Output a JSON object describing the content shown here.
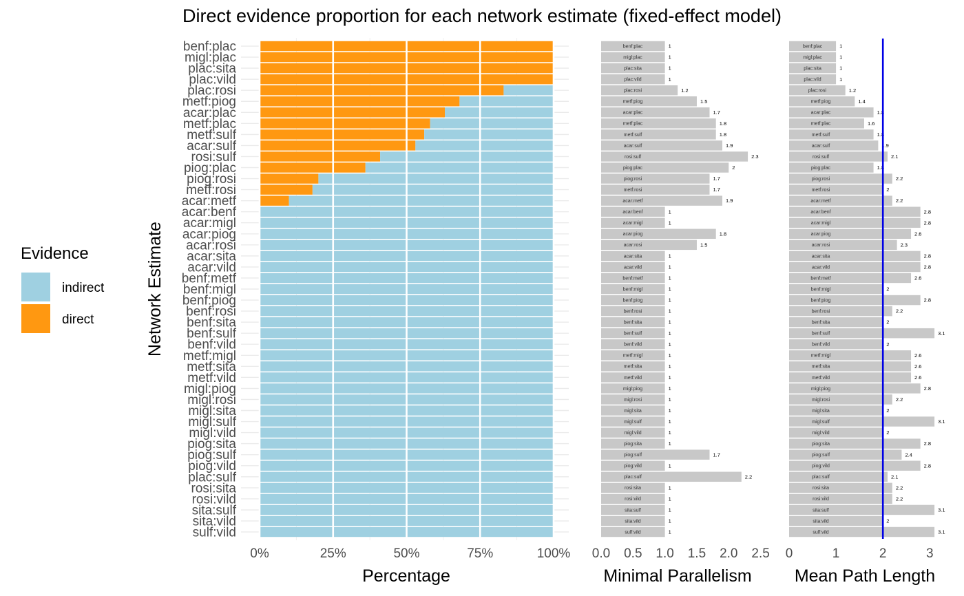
{
  "title": "Direct evidence proportion for each network estimate (fixed-effect model)",
  "y_label": "Network Estimate",
  "legend": {
    "title": "Evidence",
    "items": [
      {
        "label": "indirect",
        "color": "#9fd0e1"
      },
      {
        "label": "direct",
        "color": "#ff9811"
      }
    ]
  },
  "colors": {
    "indirect": "#9fd0e1",
    "direct": "#ff9811",
    "gray_bar": "#c8c8c8",
    "ref_line": "#0000e6",
    "grid": "#ebebeb"
  },
  "chart_data": [
    {
      "type": "bar",
      "orientation": "horizontal",
      "stacked": true,
      "xlabel": "Percentage",
      "ylabel": "Network Estimate",
      "xlim": [
        0,
        100
      ],
      "x_ticks": [
        "0%",
        "25%",
        "50%",
        "75%",
        "100%"
      ],
      "x_tick_values": [
        0,
        25,
        50,
        75,
        100
      ],
      "categories": [
        "benf:plac",
        "migl:plac",
        "plac:sita",
        "plac:vild",
        "plac:rosi",
        "metf:piog",
        "acar:plac",
        "metf:plac",
        "metf:sulf",
        "acar:sulf",
        "rosi:sulf",
        "piog:plac",
        "piog:rosi",
        "metf:rosi",
        "acar:metf",
        "acar:benf",
        "acar:migl",
        "acar:piog",
        "acar:rosi",
        "acar:sita",
        "acar:vild",
        "benf:metf",
        "benf:migl",
        "benf:piog",
        "benf:rosi",
        "benf:sita",
        "benf:sulf",
        "benf:vild",
        "metf:migl",
        "metf:sita",
        "metf:vild",
        "migl:piog",
        "migl:rosi",
        "migl:sita",
        "migl:sulf",
        "migl:vild",
        "piog:sita",
        "piog:sulf",
        "piog:vild",
        "plac:sulf",
        "rosi:sita",
        "rosi:vild",
        "sita:sulf",
        "sita:vild",
        "sulf:vild"
      ],
      "series": [
        {
          "name": "direct",
          "values": [
            100,
            100,
            100,
            100,
            83,
            68,
            63,
            58,
            56,
            53,
            41,
            36,
            20,
            18,
            10,
            0,
            0,
            0,
            0,
            0,
            0,
            0,
            0,
            0,
            0,
            0,
            0,
            0,
            0,
            0,
            0,
            0,
            0,
            0,
            0,
            0,
            0,
            0,
            0,
            0,
            0,
            0,
            0,
            0,
            0
          ]
        },
        {
          "name": "indirect",
          "values": [
            0,
            0,
            0,
            0,
            17,
            32,
            37,
            42,
            44,
            47,
            59,
            64,
            80,
            82,
            90,
            100,
            100,
            100,
            100,
            100,
            100,
            100,
            100,
            100,
            100,
            100,
            100,
            100,
            100,
            100,
            100,
            100,
            100,
            100,
            100,
            100,
            100,
            100,
            100,
            100,
            100,
            100,
            100,
            100,
            100
          ]
        }
      ],
      "legend_position": "left",
      "grid": true
    },
    {
      "type": "bar",
      "orientation": "horizontal",
      "xlabel": "Minimal Parallelism",
      "xlim": [
        0,
        2.55
      ],
      "x_ticks": [
        "0.0",
        "0.5",
        "1.0",
        "1.5",
        "2.0",
        "2.5"
      ],
      "x_tick_values": [
        0,
        0.5,
        1,
        1.5,
        2,
        2.5
      ],
      "categories": [
        "benf:plac",
        "migl:plac",
        "plac:sita",
        "plac:vild",
        "plac:rosi",
        "metf:piog",
        "acar:plac",
        "metf:plac",
        "metf:sulf",
        "acar:sulf",
        "rosi:sulf",
        "piog:plac",
        "piog:rosi",
        "metf:rosi",
        "acar:metf",
        "acar:benf",
        "acar:migl",
        "acar:piog",
        "acar:rosi",
        "acar:sita",
        "acar:vild",
        "benf:metf",
        "benf:migl",
        "benf:piog",
        "benf:rosi",
        "benf:sita",
        "benf:sulf",
        "benf:vild",
        "metf:migl",
        "metf:sita",
        "metf:vild",
        "migl:piog",
        "migl:rosi",
        "migl:sita",
        "migl:sulf",
        "migl:vild",
        "piog:sita",
        "piog:sulf",
        "piog:vild",
        "plac:sulf",
        "rosi:sita",
        "rosi:vild",
        "sita:sulf",
        "sita:vild",
        "sulf:vild"
      ],
      "values": [
        1,
        1,
        1,
        1,
        1.2,
        1.5,
        1.7,
        1.8,
        1.8,
        1.9,
        2.3,
        2,
        1.7,
        1.7,
        1.9,
        1,
        1,
        1.8,
        1.5,
        1,
        1,
        1,
        1,
        1,
        1,
        1,
        1,
        1,
        1,
        1,
        1,
        1,
        1,
        1,
        1,
        1,
        1,
        1.7,
        1,
        2.2,
        1,
        1,
        1,
        1,
        1
      ],
      "value_labels": [
        "1",
        "1",
        "1",
        "1",
        "1.2",
        "1.5",
        "1.7",
        "1.8",
        "1.8",
        "1.9",
        "2.3",
        "2",
        "1.7",
        "1.7",
        "1.9",
        "1",
        "1",
        "1.8",
        "1.5",
        "1",
        "1",
        "1",
        "1",
        "1",
        "1",
        "1",
        "1",
        "1",
        "1",
        "1",
        "1",
        "1",
        "1",
        "1",
        "1",
        "1",
        "1",
        "1.7",
        "1",
        "2.2",
        "1",
        "1",
        "1",
        "1",
        "1"
      ]
    },
    {
      "type": "bar",
      "orientation": "horizontal",
      "xlabel": "Mean Path Length",
      "xlim": [
        0,
        3.15
      ],
      "x_ticks": [
        "0",
        "1",
        "2",
        "3"
      ],
      "x_tick_values": [
        0,
        1,
        2,
        3
      ],
      "reference_line": 2,
      "categories": [
        "benf:plac",
        "migl:plac",
        "plac:sita",
        "plac:vild",
        "plac:rosi",
        "metf:piog",
        "acar:plac",
        "metf:plac",
        "metf:sulf",
        "acar:sulf",
        "rosi:sulf",
        "piog:plac",
        "piog:rosi",
        "metf:rosi",
        "acar:metf",
        "acar:benf",
        "acar:migl",
        "acar:piog",
        "acar:rosi",
        "acar:sita",
        "acar:vild",
        "benf:metf",
        "benf:migl",
        "benf:piog",
        "benf:rosi",
        "benf:sita",
        "benf:sulf",
        "benf:vild",
        "metf:migl",
        "metf:sita",
        "metf:vild",
        "migl:piog",
        "migl:rosi",
        "migl:sita",
        "migl:sulf",
        "migl:vild",
        "piog:sita",
        "piog:sulf",
        "piog:vild",
        "plac:sulf",
        "rosi:sita",
        "rosi:vild",
        "sita:sulf",
        "sita:vild",
        "sulf:vild"
      ],
      "values": [
        1,
        1,
        1,
        1,
        1.2,
        1.4,
        1.8,
        1.6,
        1.8,
        1.9,
        2.1,
        1.8,
        2.2,
        2,
        2.2,
        2.8,
        2.8,
        2.6,
        2.3,
        2.8,
        2.8,
        2.6,
        2,
        2.8,
        2.2,
        2,
        3.1,
        2,
        2.6,
        2.6,
        2.6,
        2.8,
        2.2,
        2,
        3.1,
        2,
        2.8,
        2.4,
        2.8,
        2.1,
        2.2,
        2.2,
        3.1,
        2,
        3.1
      ],
      "value_labels": [
        "1",
        "1",
        "1",
        "1",
        "1.2",
        "1.4",
        "1.8",
        "1.6",
        "1.8",
        "1.9",
        "2.1",
        "1.8",
        "2.2",
        "2",
        "2.2",
        "2.8",
        "2.8",
        "2.6",
        "2.3",
        "2.8",
        "2.8",
        "2.6",
        "2",
        "2.8",
        "2.2",
        "2",
        "3.1",
        "2",
        "2.6",
        "2.6",
        "2.6",
        "2.8",
        "2.2",
        "2",
        "3.1",
        "2",
        "2.8",
        "2.4",
        "2.8",
        "2.1",
        "2.2",
        "2.2",
        "3.1",
        "2",
        "3.1"
      ]
    }
  ]
}
